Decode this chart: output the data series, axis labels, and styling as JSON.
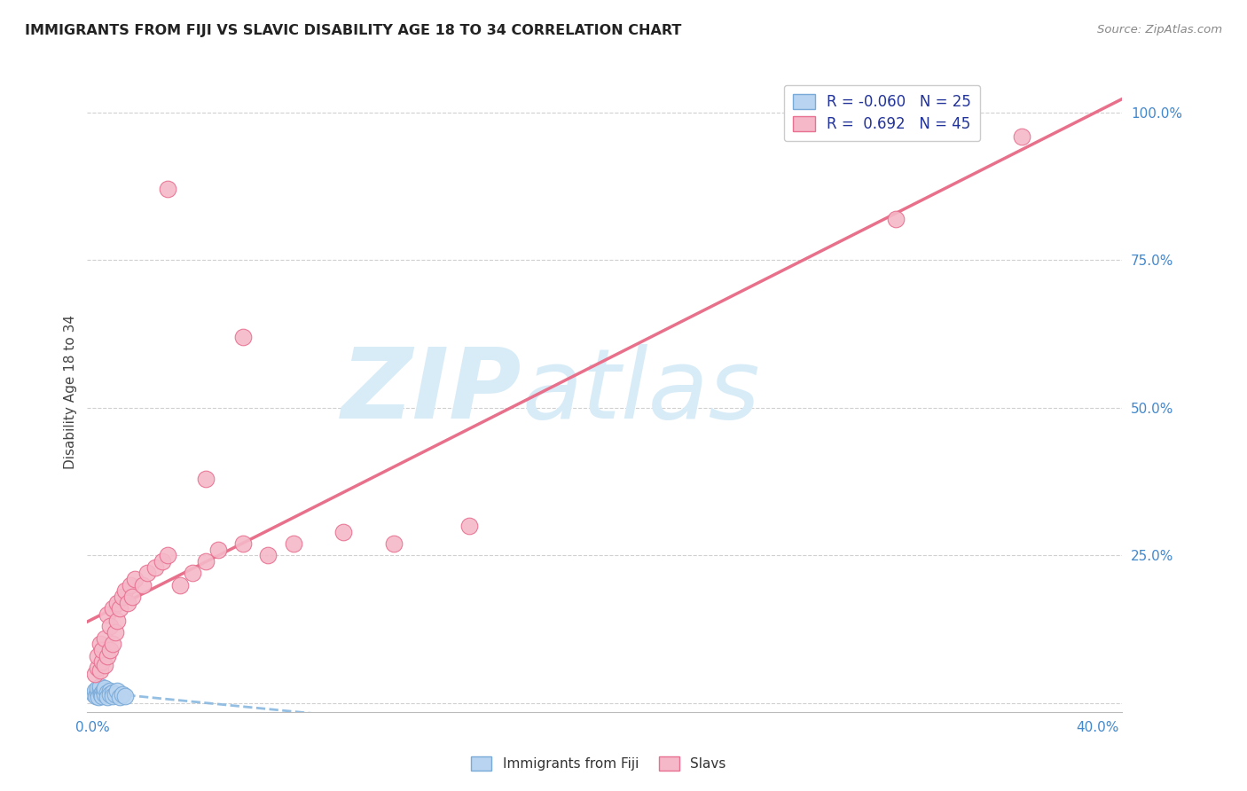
{
  "title": "IMMIGRANTS FROM FIJI VS SLAVIC DISABILITY AGE 18 TO 34 CORRELATION CHART",
  "source": "Source: ZipAtlas.com",
  "ylabel": "Disability Age 18 to 34",
  "xlim": [
    -0.002,
    0.41
  ],
  "ylim": [
    -0.015,
    1.07
  ],
  "ytick_positions": [
    0.0,
    0.25,
    0.5,
    0.75,
    1.0
  ],
  "ytick_labels": [
    "",
    "25.0%",
    "50.0%",
    "75.0%",
    "100.0%"
  ],
  "fiji_color": "#b8d4f0",
  "fiji_edge_color": "#7aaad8",
  "slavs_color": "#f5b8c8",
  "slavs_edge_color": "#e87090",
  "fiji_R": -0.06,
  "fiji_N": 25,
  "slavs_R": 0.692,
  "slavs_N": 45,
  "fiji_line_color": "#88b8e0",
  "slavs_line_color": "#e8708a",
  "watermark_zip": "ZIP",
  "watermark_atlas": "atlas",
  "watermark_color": "#d8ecf8",
  "background_color": "#ffffff",
  "grid_color": "#d0d0d0",
  "fiji_x": [
    0.0005,
    0.001,
    0.0015,
    0.002,
    0.002,
    0.0025,
    0.003,
    0.003,
    0.0035,
    0.004,
    0.004,
    0.0045,
    0.005,
    0.005,
    0.006,
    0.006,
    0.007,
    0.007,
    0.008,
    0.008,
    0.009,
    0.01,
    0.011,
    0.012,
    0.013
  ],
  "fiji_y": [
    0.015,
    0.02,
    0.012,
    0.018,
    0.025,
    0.01,
    0.022,
    0.028,
    0.015,
    0.018,
    0.012,
    0.02,
    0.015,
    0.025,
    0.018,
    0.01,
    0.02,
    0.015,
    0.018,
    0.012,
    0.015,
    0.02,
    0.01,
    0.015,
    0.012
  ],
  "slavs_x": [
    0.001,
    0.002,
    0.002,
    0.003,
    0.003,
    0.004,
    0.004,
    0.005,
    0.005,
    0.006,
    0.006,
    0.007,
    0.007,
    0.008,
    0.008,
    0.009,
    0.01,
    0.01,
    0.011,
    0.012,
    0.013,
    0.014,
    0.015,
    0.016,
    0.017,
    0.02,
    0.022,
    0.025,
    0.028,
    0.03,
    0.035,
    0.04,
    0.045,
    0.05,
    0.06,
    0.07,
    0.08,
    0.1,
    0.12,
    0.15,
    0.03,
    0.045,
    0.06,
    0.32,
    0.37
  ],
  "slavs_y": [
    0.05,
    0.06,
    0.08,
    0.055,
    0.1,
    0.07,
    0.09,
    0.065,
    0.11,
    0.08,
    0.15,
    0.09,
    0.13,
    0.1,
    0.16,
    0.12,
    0.14,
    0.17,
    0.16,
    0.18,
    0.19,
    0.17,
    0.2,
    0.18,
    0.21,
    0.2,
    0.22,
    0.23,
    0.24,
    0.25,
    0.2,
    0.22,
    0.24,
    0.26,
    0.27,
    0.25,
    0.27,
    0.29,
    0.27,
    0.3,
    0.87,
    0.38,
    0.62,
    0.82,
    0.96
  ],
  "legend_label_fiji": "R = -0.060   N = 25",
  "legend_label_slavs": "R =  0.692   N = 45",
  "bottom_legend_fiji": "Immigrants from Fiji",
  "bottom_legend_slavs": "Slavs"
}
